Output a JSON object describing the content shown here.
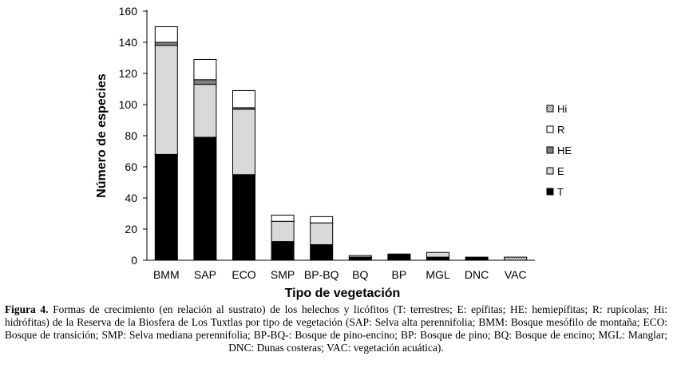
{
  "chart_data": {
    "type": "bar",
    "stacked": true,
    "categories": [
      "BMM",
      "SAP",
      "ECO",
      "SMP",
      "BP-BQ",
      "BQ",
      "BP",
      "MGL",
      "DNC",
      "VAC"
    ],
    "series": [
      {
        "name": "T",
        "values": [
          68,
          79,
          55,
          12,
          10,
          2,
          4,
          2,
          2,
          0
        ]
      },
      {
        "name": "E",
        "values": [
          70,
          34,
          42,
          13,
          14,
          1,
          0,
          3,
          0,
          0
        ]
      },
      {
        "name": "HE",
        "values": [
          2,
          3,
          1,
          0,
          0,
          0,
          0,
          0,
          0,
          0
        ]
      },
      {
        "name": "R",
        "values": [
          10,
          13,
          11,
          4,
          4,
          0,
          0,
          0,
          0,
          0
        ]
      },
      {
        "name": "Hi",
        "values": [
          0,
          0,
          0,
          0,
          0,
          0,
          0,
          0,
          0,
          2
        ]
      }
    ],
    "colors": {
      "T": "#000000",
      "E": "#d9d9d9",
      "HE": "#808080",
      "R": "#ffffff",
      "Hi": "#bfbfbf"
    },
    "legend_order": [
      "Hi",
      "R",
      "HE",
      "E",
      "T"
    ],
    "legend_position": "right",
    "xlabel": "Tipo de vegetación",
    "ylabel": "Número de especies",
    "ylim": [
      0,
      160
    ],
    "yticks": [
      0,
      20,
      40,
      60,
      80,
      100,
      120,
      140,
      160
    ],
    "grid": false
  },
  "caption": {
    "label": "Figura 4.",
    "text": "Formas de crecimiento (en relación al sustrato) de los helechos y licófitos (T: terrestres; E: epífitas; HE: hemiepífitas; R: rupícolas; Hi: hidrófitas) de la Reserva de la Biosfera de Los Tuxtlas por tipo de vegetación (SAP: Selva alta perennifolia; BMM: Bosque mesófilo de montaña; ECO: Bosque de transición; SMP: Selva mediana perennifolia; BP-BQ-: Bosque de pino-encino; BP: Bosque de pino; BQ: Bosque de encino; MGL: Manglar; DNC: Dunas costeras; VAC: vegetación acuática)."
  }
}
